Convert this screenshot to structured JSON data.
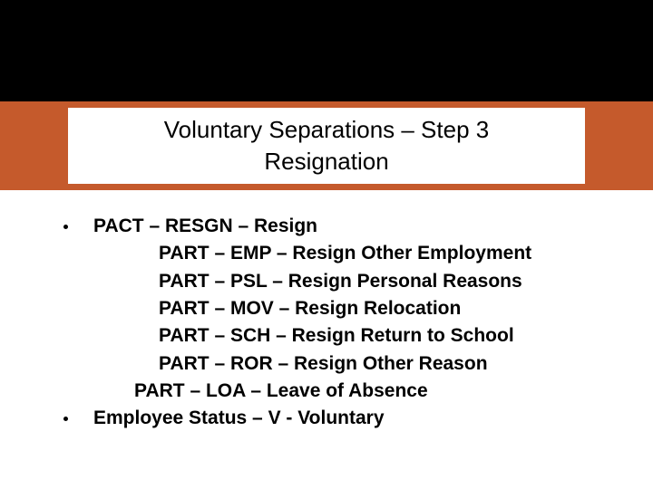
{
  "colors": {
    "background": "#000000",
    "band": "#c55a2c",
    "panel": "#ffffff",
    "text": "#000000"
  },
  "title": {
    "line1": "Voluntary Separations – Step 3",
    "line2": "Resignation",
    "fontsize": 26,
    "weight": 400
  },
  "body": {
    "fontsize": 21,
    "weight": 700,
    "bullets": [
      {
        "text": "PACT – RESGN – Resign",
        "sub_level1": [
          {
            "text": "PART – LOA – Leave of Absence"
          }
        ],
        "sub_level2": [
          {
            "text": "PART – EMP – Resign Other Employment"
          },
          {
            "text": "PART – PSL – Resign Personal Reasons"
          },
          {
            "text": "PART – MOV – Resign Relocation"
          },
          {
            "text": "PART – SCH – Resign Return to School"
          },
          {
            "text": "PART – ROR – Resign Other Reason"
          }
        ]
      },
      {
        "text": "Employee Status – V - Voluntary"
      }
    ]
  }
}
